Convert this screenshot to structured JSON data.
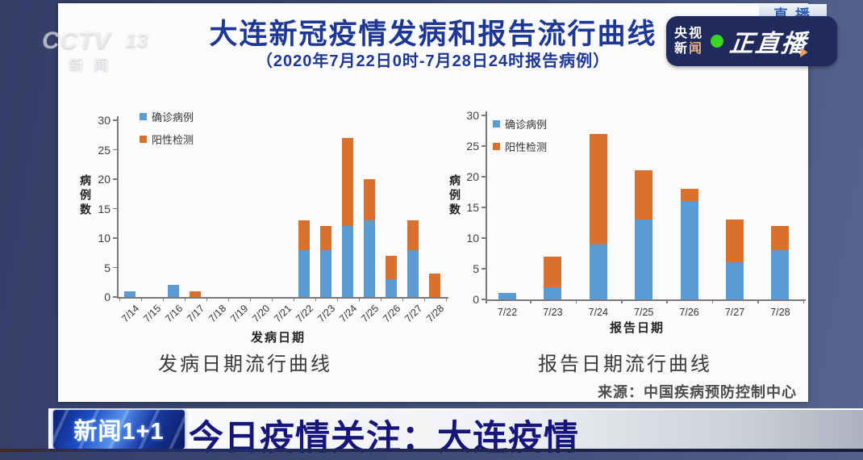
{
  "broadcast": {
    "watermark": {
      "cctv": "CCTV",
      "num": "13",
      "sub": "新闻"
    },
    "live_tag": "直播",
    "badge": {
      "brand_top": "央视",
      "brand_bottom_1": "新",
      "brand_bottom_2": "闻",
      "live_label": "正直播"
    },
    "ticker": {
      "program_logo": "新闻1+1",
      "headline": "今日疫情关注：大连疫情"
    }
  },
  "panel": {
    "title": "大连新冠疫情发病和报告流行曲线",
    "subtitle": "（2020年7月22日0时-7月28日24时报告病例）",
    "source": "来源：中国疾病预防控制中心"
  },
  "colors": {
    "background_navy": "#3c4973",
    "panel_white": "#fbfbfc",
    "title_blue": "#1d3796",
    "headline_blue": "#15157b",
    "badge_navy": "#202a5c",
    "live_dot_green": "#39d81f",
    "series_confirmed_blue": "#5b9bd5",
    "series_positive_orange": "#d9712c"
  },
  "chart_data": [
    {
      "type": "bar",
      "stacked": true,
      "title": "发病日期流行曲线",
      "xlabel": "发病日期",
      "ylabel": "病例数",
      "categories": [
        "7/14",
        "7/15",
        "7/16",
        "7/17",
        "7/18",
        "7/19",
        "7/20",
        "7/21",
        "7/22",
        "7/23",
        "7/24",
        "7/25",
        "7/26",
        "7/27",
        "7/28"
      ],
      "series": [
        {
          "name": "确诊病例",
          "color": "#5b9bd5",
          "values": [
            1,
            0,
            2,
            0,
            0,
            0,
            0,
            0,
            8,
            8,
            12,
            13,
            3,
            8,
            0
          ]
        },
        {
          "name": "阳性检测",
          "color": "#d9712c",
          "values": [
            0,
            0,
            0,
            1,
            0,
            0,
            0,
            0,
            5,
            4,
            15,
            7,
            4,
            5,
            4
          ]
        }
      ],
      "ylim": [
        0,
        30
      ],
      "yticks": [
        0,
        5,
        10,
        15,
        20,
        25,
        30
      ],
      "x_tick_rotation": -45,
      "grid": false,
      "legend_position": "top-left"
    },
    {
      "type": "bar",
      "stacked": true,
      "title": "报告日期流行曲线",
      "xlabel": "报告日期",
      "ylabel": "病例数",
      "categories": [
        "7/22",
        "7/23",
        "7/24",
        "7/25",
        "7/26",
        "7/27",
        "7/28"
      ],
      "series": [
        {
          "name": "确诊病例",
          "color": "#5b9bd5",
          "values": [
            1,
            2,
            9,
            13,
            16,
            6,
            8
          ]
        },
        {
          "name": "阳性检测",
          "color": "#d9712c",
          "values": [
            0,
            5,
            18,
            8,
            2,
            7,
            4
          ]
        }
      ],
      "ylim": [
        0,
        30
      ],
      "yticks": [
        0,
        5,
        10,
        15,
        20,
        25,
        30
      ],
      "x_tick_rotation": 0,
      "grid": false,
      "legend_position": "top-left"
    }
  ]
}
